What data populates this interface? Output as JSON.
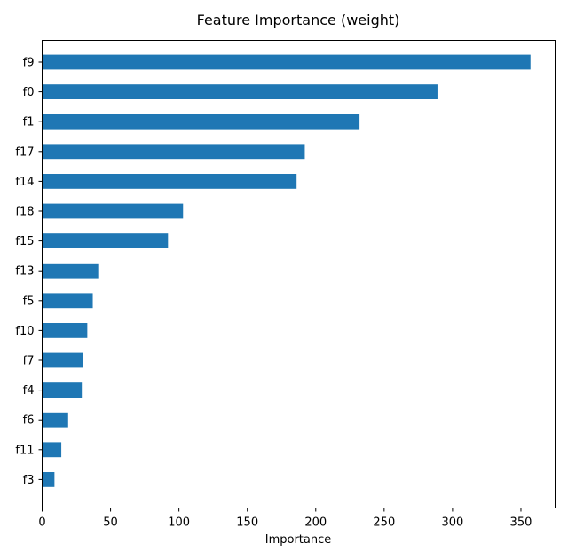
{
  "chart_data": {
    "type": "bar",
    "orientation": "horizontal",
    "title": "Feature Importance (weight)",
    "xlabel": "Importance",
    "ylabel": "",
    "xlim": [
      0,
      375
    ],
    "xticks": [
      0,
      50,
      100,
      150,
      200,
      250,
      300,
      350
    ],
    "grid": false,
    "legend": "none",
    "bar_color": "#1f77b4",
    "categories": [
      "f9",
      "f0",
      "f1",
      "f17",
      "f14",
      "f18",
      "f15",
      "f13",
      "f5",
      "f10",
      "f7",
      "f4",
      "f6",
      "f11",
      "f3"
    ],
    "values": [
      357,
      289,
      232,
      192,
      186,
      103,
      92,
      41,
      37,
      33,
      30,
      29,
      19,
      14,
      9
    ]
  }
}
